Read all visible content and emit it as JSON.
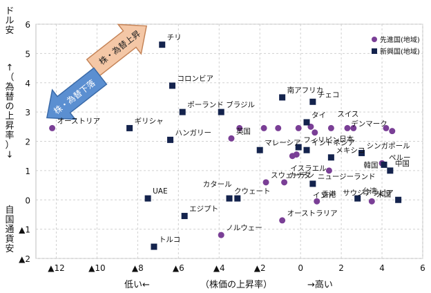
{
  "chart_data": {
    "type": "scatter",
    "xlim": [
      -13,
      6
    ],
    "ylim": [
      -2,
      6
    ],
    "grid": true,
    "legend_position": "top-right",
    "x_ticks": [
      {
        "v": -12,
        "label": "▲12"
      },
      {
        "v": -10,
        "label": "▲10"
      },
      {
        "v": -8,
        "label": "▲8"
      },
      {
        "v": -6,
        "label": "▲6"
      },
      {
        "v": -4,
        "label": "▲4"
      },
      {
        "v": -2,
        "label": "▲2"
      },
      {
        "v": 0,
        "label": "0"
      },
      {
        "v": 2,
        "label": "2"
      },
      {
        "v": 4,
        "label": "4"
      },
      {
        "v": 6,
        "label": "6"
      }
    ],
    "y_ticks": [
      {
        "v": 6,
        "label": "6"
      },
      {
        "v": 5,
        "label": "5"
      },
      {
        "v": 4,
        "label": "4"
      },
      {
        "v": 3,
        "label": "3"
      },
      {
        "v": 2,
        "label": "2"
      },
      {
        "v": 1,
        "label": "1"
      },
      {
        "v": 0,
        "label": "0"
      },
      {
        "v": -1,
        "label": "▲1"
      },
      {
        "v": -2,
        "label": "▲2"
      }
    ],
    "x_axis_text": {
      "low": "低い←",
      "mid": "（株価の上昇率）",
      "high": "→高い"
    },
    "y_axis_top": "ドル安",
    "y_axis_mid": "↑（為替の上昇率）↓",
    "y_axis_bottom": "自国通貨安",
    "arrow_up_text": "株・為替上昇",
    "arrow_down_text": "株・為替下落",
    "series": [
      {
        "name": "先進国(地域)",
        "marker": "circle",
        "color": "#7a3f96",
        "points": [
          {
            "x": -12.2,
            "y": 2.45,
            "label": "オーストリア"
          },
          {
            "x": -3.4,
            "y": 2.1,
            "label": "英国"
          },
          {
            "x": -3.0,
            "y": 2.45,
            "label": ""
          },
          {
            "x": -1.8,
            "y": 2.45,
            "label": ""
          },
          {
            "x": -1.1,
            "y": 2.45,
            "label": ""
          },
          {
            "x": -0.1,
            "y": 2.45,
            "label": ""
          },
          {
            "x": -0.2,
            "y": 1.55,
            "label": ""
          },
          {
            "x": -0.4,
            "y": 1.5,
            "label": ""
          },
          {
            "x": 0.5,
            "y": 2.5,
            "label": ""
          },
          {
            "x": 0.7,
            "y": 2.3,
            "label": ""
          },
          {
            "x": 1.5,
            "y": 2.45,
            "label": ""
          },
          {
            "x": 2.3,
            "y": 2.45,
            "label": ""
          },
          {
            "x": 2.6,
            "y": 2.45,
            "label": ""
          },
          {
            "x": 4.2,
            "y": 2.45,
            "label": ""
          },
          {
            "x": 4.5,
            "y": 2.35,
            "label": "デンマーク"
          },
          {
            "x": 1.4,
            "y": 1.0,
            "label": ""
          },
          {
            "x": 4.0,
            "y": 1.25,
            "label": ""
          },
          {
            "x": -1.7,
            "y": 0.6,
            "label": "スウェーデン"
          },
          {
            "x": -0.8,
            "y": 0.6,
            "label": "カナダ"
          },
          {
            "x": 0.8,
            "y": -0.05,
            "label": "香港"
          },
          {
            "x": 3.5,
            "y": -0.05,
            "label": "米国"
          },
          {
            "x": -0.9,
            "y": -0.7,
            "label": "オーストラリア"
          },
          {
            "x": -3.9,
            "y": -1.2,
            "label": "ノルウェー"
          }
        ]
      },
      {
        "name": "新興国(地域)",
        "marker": "square",
        "color": "#14234d",
        "points": [
          {
            "x": -6.8,
            "y": 5.3,
            "label": "チリ"
          },
          {
            "x": -6.3,
            "y": 3.9,
            "label": "コロンビア"
          },
          {
            "x": -5.8,
            "y": 3.0,
            "label": "ポーランド"
          },
          {
            "x": -3.9,
            "y": 3.0,
            "label": "ブラジル"
          },
          {
            "x": -8.4,
            "y": 2.45,
            "label": "ギリシャ"
          },
          {
            "x": -6.4,
            "y": 2.05,
            "label": "ハンガリー"
          },
          {
            "x": -0.9,
            "y": 3.5,
            "label": "南アフリカ"
          },
          {
            "x": 0.6,
            "y": 3.35,
            "label": "チェコ"
          },
          {
            "x": 0.3,
            "y": 2.65,
            "label": "タイ"
          },
          {
            "x": -0.1,
            "y": 1.8,
            "label": "フィリピン"
          },
          {
            "x": 0.3,
            "y": 1.7,
            "label": "インドネシア"
          },
          {
            "x": 1.5,
            "y": 1.45,
            "label": "メキシコ"
          },
          {
            "x": -2.0,
            "y": 1.7,
            "label": "マレーシア"
          },
          {
            "x": 3.0,
            "y": 1.6,
            "label": "シンガポール"
          },
          {
            "x": 4.1,
            "y": 1.2,
            "label": "ペルー"
          },
          {
            "x": 4.4,
            "y": 1.0,
            "label": "中国"
          },
          {
            "x": 0.6,
            "y": 0.55,
            "label": "ニュージーランド"
          },
          {
            "x": -3.5,
            "y": 0.05,
            "label": "クウェート"
          },
          {
            "x": -3.1,
            "y": 0.05,
            "label": ""
          },
          {
            "x": -7.5,
            "y": 0.05,
            "label": "UAE"
          },
          {
            "x": -5.7,
            "y": -0.55,
            "label": "エジプト"
          },
          {
            "x": -7.2,
            "y": -1.6,
            "label": "トルコ"
          },
          {
            "x": 2.8,
            "y": 0.05,
            "label": "台湾"
          },
          {
            "x": 4.8,
            "y": 0.0,
            "label": "サウジアラビア"
          }
        ]
      }
    ],
    "annotations": [
      {
        "text": "スイス",
        "x": 1.8,
        "y": 2.85
      },
      {
        "text": "日本",
        "x": 1.9,
        "y": 2.0
      },
      {
        "text": "韓国",
        "x": 3.1,
        "y": 1.1
      },
      {
        "text": "イスラエル",
        "x": -0.5,
        "y": 1.0
      },
      {
        "text": "インド",
        "x": 0.6,
        "y": 0.08
      },
      {
        "text": "カタール",
        "x": -4.8,
        "y": 0.45
      }
    ]
  }
}
